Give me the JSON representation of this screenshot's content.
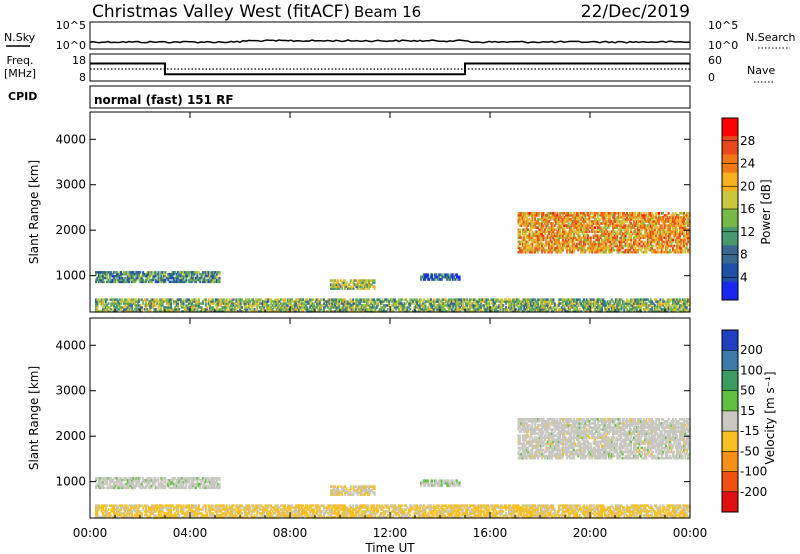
{
  "header": {
    "station": "Christmas Valley West (fitACF)",
    "beam": "Beam 16",
    "date": "22/Dec/2019"
  },
  "nsky_panel": {
    "left_label": "N.Sky",
    "left_ticks": [
      "10^5",
      "10^0"
    ],
    "right_ticks": [
      "10^5",
      "10^0"
    ],
    "right_label": "N.Search"
  },
  "freq_panel": {
    "left_label_line1": "Freq.",
    "left_label_line2": "[MHz]",
    "left_ticks": [
      "18",
      "8"
    ],
    "right_ticks": [
      "60",
      "0"
    ],
    "right_label": "Nave",
    "cpid_label": "CPID",
    "cpid_value": "normal (fast) 151 RF"
  },
  "power_panel": {
    "ylabel": "Slant Range [km]",
    "yticks": [
      "4000",
      "3000",
      "2000",
      "1000"
    ],
    "colorbar_label": "Power [dB]",
    "colorbar_ticks": [
      "28",
      "24",
      "20",
      "16",
      "12",
      "8",
      "4"
    ],
    "colors": [
      "#ff0000",
      "#e8481a",
      "#f07818",
      "#f8b020",
      "#c8c83c",
      "#78b848",
      "#489870",
      "#386890",
      "#2050a8",
      "#1828f0"
    ]
  },
  "velocity_panel": {
    "ylabel": "Slant Range [km]",
    "yticks": [
      "4000",
      "3000",
      "2000",
      "1000"
    ],
    "colorbar_label": "Velocity [m s⁻¹]",
    "colorbar_ticks": [
      "200",
      "100",
      "50",
      "15",
      "-15",
      "-50",
      "-100",
      "-200"
    ],
    "colors": [
      "#2040c0",
      "#3c7ca8",
      "#3c9c60",
      "#60c040",
      "#c8c8c0",
      "#f8c020",
      "#f89018",
      "#f05010",
      "#e01010"
    ]
  },
  "x_axis": {
    "ticks": [
      "00:00",
      "04:00",
      "08:00",
      "12:00",
      "16:00",
      "20:00",
      "00:00"
    ],
    "label": "Time UT"
  },
  "chart_data": {
    "type": "heatmap",
    "title": "Christmas Valley West (fitACF) Beam 16 22/Dec/2019",
    "xlabel": "Time UT",
    "ylabel": "Slant Range [km]",
    "xlim_hours": [
      0,
      24
    ],
    "ylim_km": [
      200,
      4600
    ],
    "frequency_MHz": [
      {
        "from": 0,
        "to": 3,
        "value": 14.5
      },
      {
        "from": 3,
        "to": 15,
        "value": 10.5
      },
      {
        "from": 15,
        "to": 24,
        "value": 14.5
      }
    ],
    "power_scale_dB": [
      0,
      32
    ],
    "velocity_scale_ms": [
      -250,
      250
    ],
    "echo_regions": [
      {
        "t_start": 0.2,
        "t_end": 24,
        "range_start": 200,
        "range_end": 500,
        "power_dB": 14,
        "velocity_ms": -40
      },
      {
        "t_start": 0.2,
        "t_end": 5.2,
        "range_start": 850,
        "range_end": 1100,
        "power_dB": 10,
        "velocity_ms": 5
      },
      {
        "t_start": 9.6,
        "t_end": 11.4,
        "range_start": 700,
        "range_end": 920,
        "power_dB": 16,
        "velocity_ms": -20
      },
      {
        "t_start": 13.2,
        "t_end": 14.8,
        "range_start": 900,
        "range_end": 1050,
        "power_dB": 6,
        "velocity_ms": 20
      },
      {
        "t_start": 17.1,
        "t_end": 24,
        "range_start": 1500,
        "range_end": 2400,
        "power_dB": 22,
        "velocity_ms": 0
      }
    ]
  }
}
